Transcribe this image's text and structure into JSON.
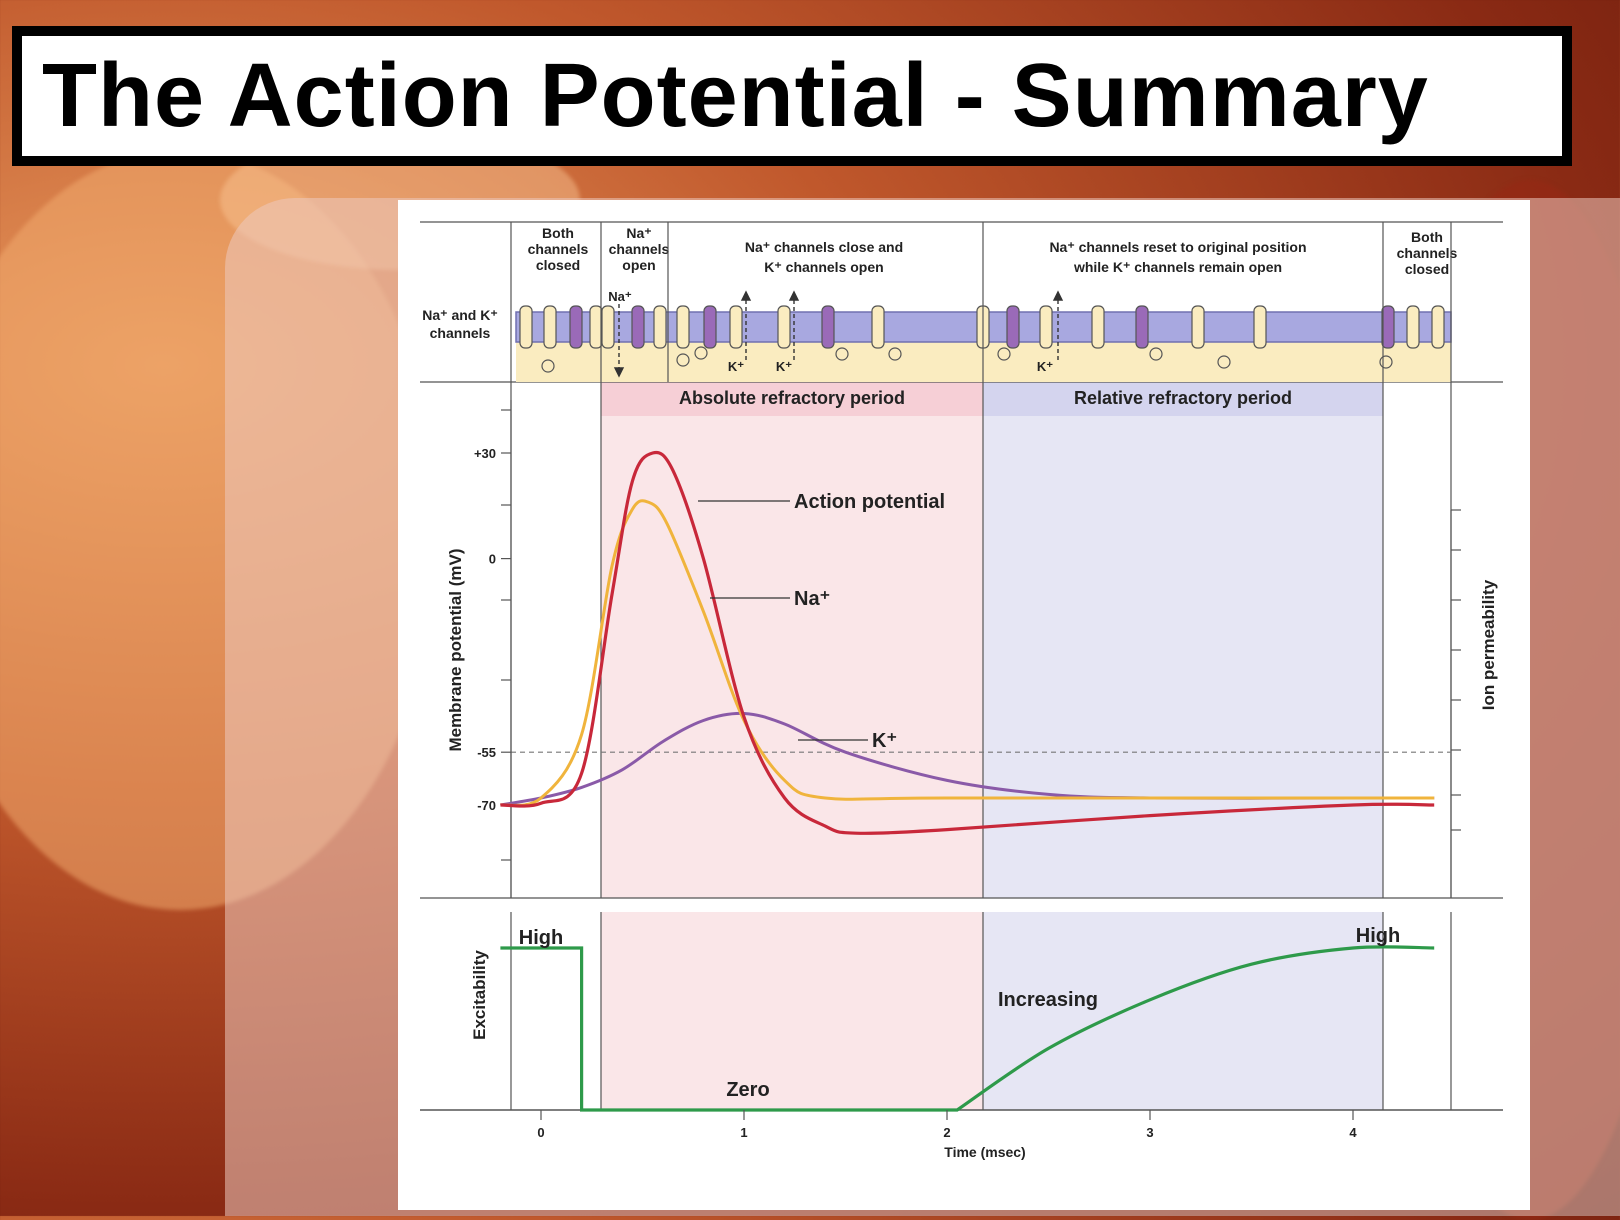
{
  "title": "The Action Potential - Summary",
  "colors": {
    "action_potential": "#c8283a",
    "na_permeability": "#f0b43c",
    "k_permeability": "#8a5aa8",
    "excitability": "#2e9a4a",
    "absolute_refractory_fill": "#fae6e8",
    "relative_refractory_fill": "#e6e6f4",
    "membrane": "#a8a8e0",
    "cytoplasm": "#faecc0"
  },
  "channel_states": {
    "label": [
      "Na⁺ and K⁺",
      "channels"
    ],
    "phase1": [
      "Both",
      "channels",
      "closed"
    ],
    "phase2": [
      "Na⁺",
      "channels",
      "open"
    ],
    "phase3": [
      "Na⁺ channels close and",
      "K⁺ channels open"
    ],
    "phase4": [
      "Na⁺ channels reset to original position",
      "while K⁺ channels remain open"
    ],
    "phase5": [
      "Both",
      "channels",
      "closed"
    ],
    "ion_na": "Na⁺",
    "ion_k": "K⁺"
  },
  "periods": {
    "absolute": "Absolute refractory period",
    "relative": "Relative refractory period"
  },
  "chart_data": [
    {
      "type": "line",
      "ylabel": "Membrane potential (mV)",
      "ylabel_right": "Ion permeability",
      "y_ticks": [
        "+30",
        "0",
        "-55",
        "-70"
      ],
      "y_tick_values": [
        30,
        0,
        -55,
        -70
      ],
      "threshold": -55,
      "series": [
        {
          "name": "Action potential",
          "x": [
            -0.2,
            0,
            0.2,
            0.35,
            0.45,
            0.55,
            0.65,
            0.8,
            1.0,
            1.2,
            1.4,
            1.55,
            2.0,
            3.0,
            4.0,
            4.4
          ],
          "y": [
            -70,
            -69.5,
            -61,
            -10,
            22,
            30,
            25,
            0,
            -45,
            -68,
            -76,
            -78,
            -77,
            -73,
            -70,
            -70
          ]
        },
        {
          "name": "Na⁺",
          "x": [
            -0.2,
            0,
            0.2,
            0.35,
            0.45,
            0.53,
            0.62,
            0.8,
            1.0,
            1.2,
            1.4,
            2.0,
            4.0,
            4.4
          ],
          "y": [
            -70,
            -68,
            -50,
            -2,
            14,
            16,
            10,
            -15,
            -46,
            -63,
            -68,
            -68,
            -68,
            -68
          ]
        },
        {
          "name": "K⁺",
          "x": [
            -0.2,
            0,
            0.2,
            0.4,
            0.6,
            0.8,
            1.0,
            1.2,
            1.5,
            2.0,
            2.5,
            3.0,
            4.0,
            4.4
          ],
          "y": [
            -70,
            -68,
            -65,
            -60,
            -52,
            -46,
            -44,
            -47,
            -55,
            -63,
            -67,
            -68,
            -68,
            -68
          ]
        }
      ]
    },
    {
      "type": "line",
      "ylabel": "Excitability",
      "xlabel": "Time (msec)",
      "x_ticks": [
        "0",
        "1",
        "2",
        "3",
        "4"
      ],
      "series": [
        {
          "name": "Excitability",
          "x": [
            -0.2,
            0.2,
            0.2,
            2.05,
            2.5,
            3.0,
            3.5,
            4.0,
            4.4
          ],
          "y": [
            1,
            1,
            0,
            0,
            0.38,
            0.68,
            0.9,
            1,
            1
          ]
        }
      ],
      "labels": {
        "high_left": "High",
        "high_right": "High",
        "zero": "Zero",
        "increasing": "Increasing"
      }
    }
  ]
}
